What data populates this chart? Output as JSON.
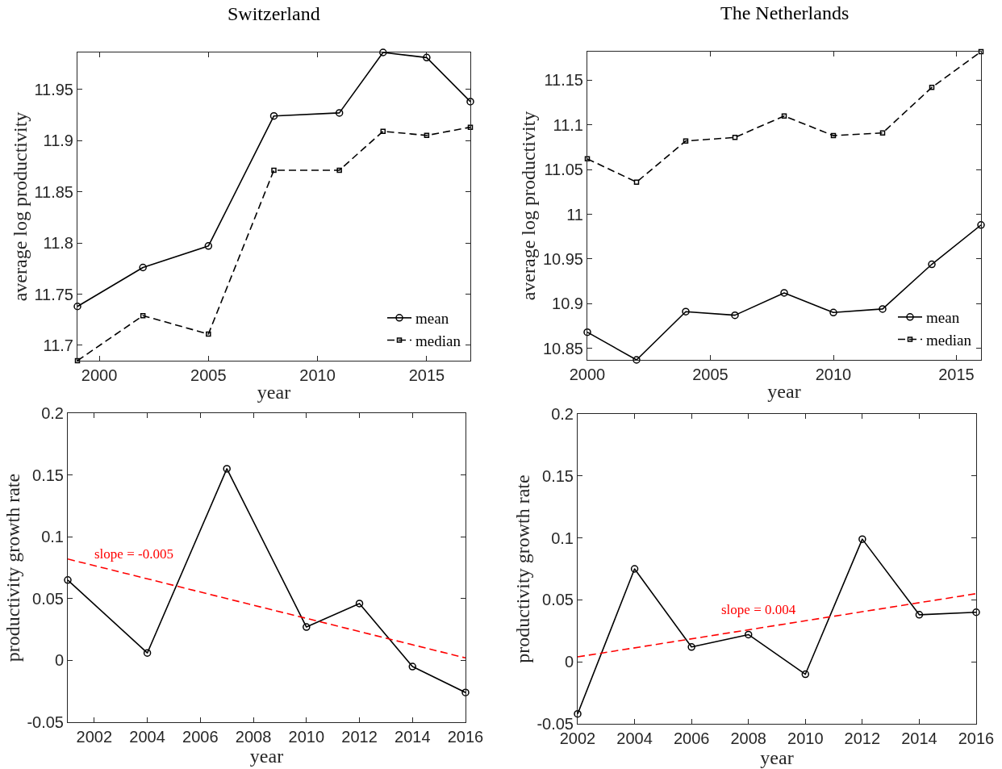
{
  "chart_data": [
    {
      "type": "line",
      "title": "Switzerland",
      "xlabel": "year",
      "ylabel": "average log productivity",
      "x": [
        1999,
        2002,
        2005,
        2008,
        2011,
        2013,
        2015,
        2017
      ],
      "series": [
        {
          "name": "mean",
          "color": "#000000",
          "marker": "circle",
          "line_style": "solid",
          "values": [
            11.738,
            11.776,
            11.797,
            11.924,
            11.927,
            11.986,
            11.981,
            11.938
          ]
        },
        {
          "name": "median",
          "color": "#000000",
          "marker": "square",
          "line_style": "dashed",
          "values": [
            11.685,
            11.729,
            11.711,
            11.871,
            11.871,
            11.909,
            11.905,
            11.913
          ]
        }
      ],
      "xlim": [
        1999,
        2017
      ],
      "xticks": [
        2000,
        2005,
        2010,
        2015
      ],
      "ylim": [
        11.685,
        11.986
      ],
      "yticks": [
        11.7,
        11.75,
        11.8,
        11.85,
        11.9,
        11.95
      ],
      "legend": "bottom right"
    },
    {
      "type": "line",
      "title": "The Netherlands",
      "xlabel": "year",
      "ylabel": "average log productivity",
      "x": [
        2000,
        2002,
        2004,
        2006,
        2008,
        2010,
        2012,
        2014,
        2016
      ],
      "series": [
        {
          "name": "mean",
          "color": "#000000",
          "marker": "circle",
          "line_style": "solid",
          "values": [
            10.868,
            10.837,
            10.891,
            10.887,
            10.912,
            10.89,
            10.894,
            10.944,
            10.988
          ]
        },
        {
          "name": "median",
          "color": "#000000",
          "marker": "square",
          "line_style": "dashed",
          "values": [
            11.062,
            11.036,
            11.082,
            11.086,
            11.11,
            11.088,
            11.091,
            11.142,
            11.182
          ]
        }
      ],
      "xlim": [
        2000,
        2016
      ],
      "xticks": [
        2000,
        2005,
        2010,
        2015
      ],
      "ylim": [
        10.837,
        11.182
      ],
      "yticks": [
        10.85,
        10.9,
        10.95,
        11,
        11.05,
        11.1,
        11.15
      ],
      "legend": "bottom right"
    },
    {
      "type": "line",
      "xlabel": "year",
      "ylabel": "productivity growth rate",
      "x": [
        2001,
        2004,
        2007,
        2010,
        2012,
        2014,
        2016
      ],
      "series": [
        {
          "color": "#000000",
          "marker": "circle",
          "line_style": "solid",
          "values": [
            0.065,
            0.006,
            0.155,
            0.027,
            0.046,
            -0.005,
            -0.026
          ]
        },
        {
          "type": "line",
          "color": "#ff0000",
          "marker": "none",
          "line_style": "dashed",
          "x": [
            2001,
            2016
          ],
          "values": [
            0.082,
            0.002
          ]
        }
      ],
      "xlim": [
        2001,
        2016
      ],
      "xticks": [
        2002,
        2004,
        2006,
        2008,
        2010,
        2012,
        2014,
        2016
      ],
      "ylim": [
        -0.05,
        0.2
      ],
      "yticks": [
        -0.05,
        0,
        0.05,
        0.1,
        0.15,
        0.2
      ],
      "annotations": [
        "slope = -0.005"
      ]
    },
    {
      "type": "line",
      "xlabel": "year",
      "ylabel": "productivity growth rate",
      "x": [
        2002,
        2004,
        2006,
        2008,
        2010,
        2012,
        2014,
        2016
      ],
      "series": [
        {
          "color": "#000000",
          "marker": "circle",
          "line_style": "solid",
          "values": [
            -0.042,
            0.075,
            0.012,
            0.022,
            -0.01,
            0.099,
            0.038,
            0.04
          ]
        },
        {
          "type": "line",
          "color": "#ff0000",
          "marker": "none",
          "line_style": "dashed",
          "x": [
            2002,
            2016
          ],
          "values": [
            0.004,
            0.055
          ]
        }
      ],
      "xlim": [
        2002,
        2016
      ],
      "xticks": [
        2002,
        2004,
        2006,
        2008,
        2010,
        2012,
        2014,
        2016
      ],
      "ylim": [
        -0.05,
        0.2
      ],
      "yticks": [
        -0.05,
        0,
        0.05,
        0.1,
        0.15,
        0.2
      ],
      "annotations": [
        "slope = 0.004"
      ]
    }
  ]
}
